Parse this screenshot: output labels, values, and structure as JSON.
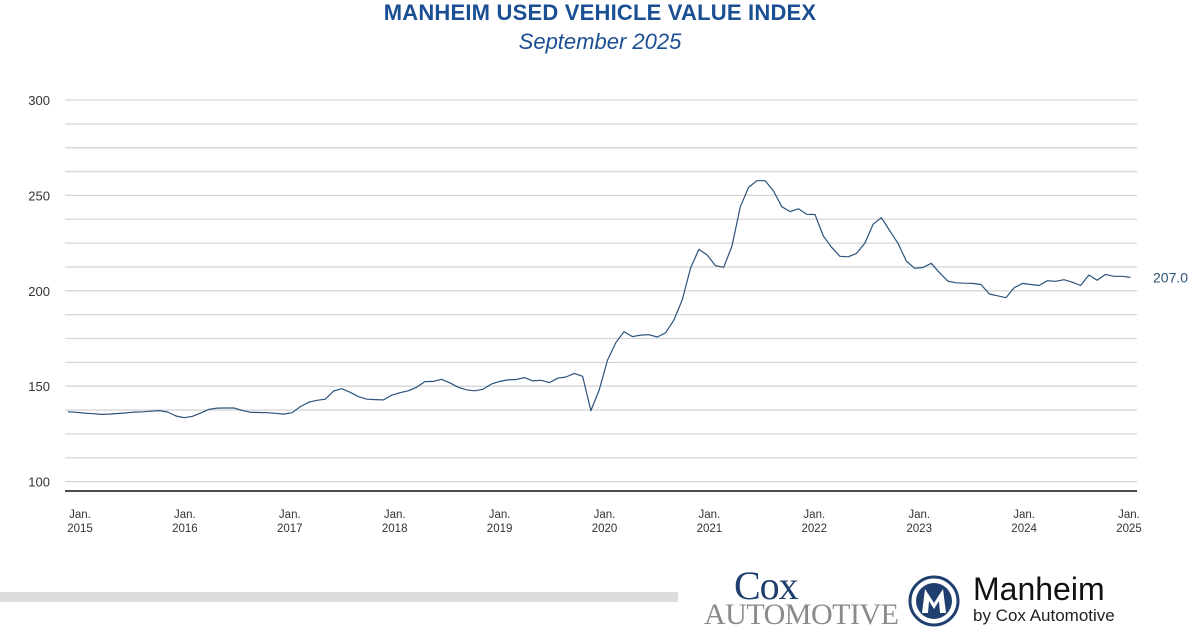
{
  "header": {
    "title": "MANHEIM USED VEHICLE VALUE INDEX",
    "subtitle": "September 2025"
  },
  "chart_data": {
    "type": "line",
    "title": "MANHEIM USED VEHICLE VALUE INDEX",
    "subtitle": "September 2025",
    "xlabel": "",
    "ylabel": "",
    "x_start": "2015-01",
    "x_end": "2025-09",
    "x_frequency": "monthly",
    "ylim": [
      100,
      300
    ],
    "y_ticks": [
      100,
      150,
      200,
      250,
      300
    ],
    "grid": true,
    "grid_step": 12.5,
    "legend": "none",
    "line_color": "#2c5379",
    "x_tick_labels": [
      {
        "month": "Jan.",
        "year": "2015"
      },
      {
        "month": "Jan.",
        "year": "2016"
      },
      {
        "month": "Jan.",
        "year": "2017"
      },
      {
        "month": "Jan.",
        "year": "2018"
      },
      {
        "month": "Jan.",
        "year": "2019"
      },
      {
        "month": "Jan.",
        "year": "2020"
      },
      {
        "month": "Jan.",
        "year": "2021"
      },
      {
        "month": "Jan.",
        "year": "2022"
      },
      {
        "month": "Jan.",
        "year": "2023"
      },
      {
        "month": "Jan.",
        "year": "2024"
      },
      {
        "month": "Jan.",
        "year": "2025"
      }
    ],
    "last_value_label": "207.0",
    "series": [
      {
        "values": [
          136.6,
          136.3,
          135.9,
          135.6,
          135.2,
          135.4,
          135.7,
          136.0,
          136.4,
          136.6,
          136.9,
          137.2,
          136.5,
          134.4,
          133.5,
          134.2,
          136.0,
          137.9,
          138.5,
          138.6,
          138.6,
          137.3,
          136.3,
          136.2,
          136.1,
          135.8,
          135.4,
          136.1,
          139.3,
          141.6,
          142.6,
          143.2,
          147.5,
          148.7,
          146.8,
          144.5,
          143.2,
          143.0,
          142.8,
          145.3,
          146.6,
          147.6,
          149.4,
          152.4,
          152.5,
          153.6,
          151.8,
          149.5,
          148.1,
          147.6,
          148.4,
          151.1,
          152.5,
          153.3,
          153.5,
          154.5,
          152.8,
          153.1,
          151.9,
          154.2,
          154.8,
          156.7,
          155.2,
          137.2,
          148.0,
          163.7,
          172.8,
          178.6,
          176.0,
          176.8,
          177.0,
          175.8,
          178.0,
          184.7,
          195.2,
          211.8,
          221.7,
          218.8,
          213.2,
          212.3,
          223.5,
          244.1,
          254.2,
          257.7,
          257.7,
          252.3,
          244.1,
          241.5,
          243.0,
          240.1,
          240.0,
          228.7,
          222.8,
          218.1,
          217.8,
          219.6,
          224.9,
          234.9,
          238.3,
          231.5,
          224.9,
          215.6,
          211.8,
          212.2,
          214.4,
          209.5,
          205.1,
          204.2,
          204.0,
          203.9,
          203.3,
          198.3,
          197.4,
          196.4,
          201.6,
          203.9,
          203.3,
          202.8,
          205.3,
          205.0,
          205.8,
          204.5,
          202.8,
          208.3,
          205.5,
          208.6,
          207.6,
          207.6,
          207.0
        ]
      }
    ]
  },
  "footer": {
    "cox_line1": "Cox",
    "cox_line2": "AUTOMOTIVE",
    "manheim_name": "Manheim",
    "manheim_sub": "by Cox Automotive"
  }
}
